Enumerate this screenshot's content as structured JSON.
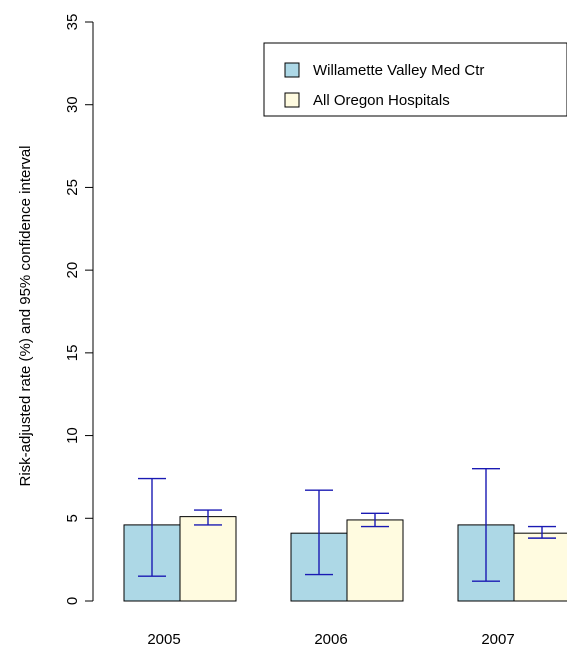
{
  "chart_data": {
    "type": "bar",
    "title": "",
    "xlabel": "",
    "ylabel": "Risk-adjusted rate (%) and 95% confidence interval",
    "ylim": [
      0,
      35
    ],
    "yticks": [
      0,
      5,
      10,
      15,
      20,
      25,
      30,
      35
    ],
    "categories": [
      "2005",
      "2006",
      "2007"
    ],
    "series": [
      {
        "name": "Willamette Valley Med Ctr",
        "color": "#add8e6",
        "values": [
          4.6,
          4.1,
          4.6
        ],
        "ci_lower": [
          1.5,
          1.6,
          1.2
        ],
        "ci_upper": [
          7.4,
          6.7,
          8.0
        ]
      },
      {
        "name": "All Oregon Hospitals",
        "color": "#fffbe0",
        "values": [
          5.1,
          4.9,
          4.1
        ],
        "ci_lower": [
          4.6,
          4.5,
          3.8
        ],
        "ci_upper": [
          5.5,
          5.3,
          4.5
        ]
      }
    ],
    "error_bar_color": "#1a1ab3",
    "legend_position": "top-right",
    "grid": false
  }
}
